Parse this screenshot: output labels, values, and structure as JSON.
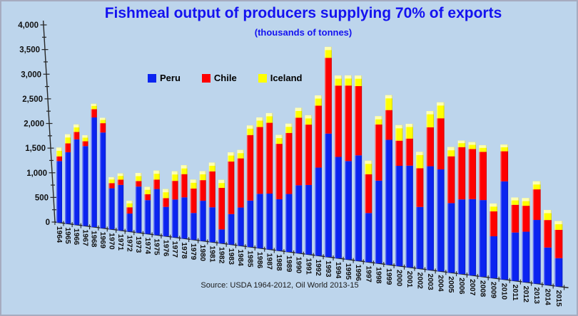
{
  "title": "Fishmeal output of producers supplying 70% of exports",
  "subtitle": "(thousands of tonnes)",
  "source_note": "Source: USDA 1964-2012, Oil World 2013-15",
  "colors": {
    "background": "#bdd5ec",
    "frame_border": "#a6abbf",
    "title_text": "#1412f0",
    "axis": "#262626",
    "peru": "#0b24f0",
    "chile": "#fe0000",
    "iceland": "#ffff00",
    "iceland_top_face": "#ffffb0",
    "tick_label": "#111111"
  },
  "chart_data": {
    "type": "bar",
    "stacked": true,
    "perspective": "3d-skewed-baseline",
    "title": "Fishmeal output of producers supplying 70% of exports",
    "subtitle": "(thousands of tonnes)",
    "ylabel": "",
    "xlabel": "",
    "ylim": [
      0,
      4000
    ],
    "ytick_major_step": 500,
    "ytick_minor_step": 250,
    "yticklabels": [
      "0",
      "500",
      "1,000",
      "1,500",
      "2,000",
      "2,500",
      "3,000",
      "3,500",
      "4,000"
    ],
    "legend_position": "inside-top-left",
    "grid": false,
    "categories": [
      1964,
      1965,
      1966,
      1967,
      1968,
      1969,
      1970,
      1971,
      1972,
      1973,
      1974,
      1975,
      1976,
      1977,
      1978,
      1979,
      1980,
      1981,
      1982,
      1983,
      1984,
      1985,
      1986,
      1987,
      1988,
      1989,
      1990,
      1991,
      1992,
      1993,
      1994,
      1995,
      1996,
      1997,
      1998,
      1999,
      2000,
      2001,
      2002,
      2003,
      2004,
      2005,
      2006,
      2007,
      2008,
      2009,
      2010,
      2011,
      2012,
      2013,
      2014,
      2015
    ],
    "series": [
      {
        "name": "Peru",
        "color": "#0b24f0",
        "values": [
          1300,
          1500,
          1780,
          1650,
          2250,
          1950,
          830,
          915,
          360,
          915,
          665,
          900,
          570,
          730,
          790,
          510,
          760,
          655,
          260,
          565,
          705,
          850,
          990,
          1010,
          925,
          1035,
          1205,
          1225,
          1545,
          2150,
          1755,
          1695,
          1805,
          835,
          1400,
          2100,
          1675,
          1690,
          1020,
          1705,
          1665,
          1130,
          1205,
          1225,
          1225,
          665,
          1550,
          760,
          790,
          990,
          580,
          435
        ]
      },
      {
        "name": "Chile",
        "color": "#fe0000",
        "values": [
          100,
          185,
          155,
          100,
          170,
          190,
          105,
          105,
          125,
          110,
          115,
          185,
          170,
          360,
          445,
          465,
          390,
          675,
          775,
          975,
          905,
          1200,
          1215,
          1280,
          995,
          1090,
          1200,
          1065,
          1085,
          1320,
          1235,
          1300,
          1185,
          660,
          950,
          500,
          420,
          450,
          640,
          640,
          835,
          760,
          845,
          805,
          770,
          395,
          475,
          435,
          405,
          475,
          425,
          435
        ]
      },
      {
        "name": "Iceland",
        "color": "#ffff00",
        "values": [
          185,
          190,
          155,
          125,
          110,
          110,
          120,
          125,
          130,
          160,
          145,
          175,
          175,
          185,
          170,
          170,
          170,
          165,
          150,
          170,
          155,
          175,
          175,
          175,
          160,
          165,
          175,
          165,
          180,
          190,
          175,
          175,
          180,
          230,
          140,
          250,
          260,
          245,
          270,
          265,
          260,
          150,
          105,
          110,
          105,
          125,
          105,
          115,
          120,
          125,
          155,
          135
        ]
      }
    ]
  }
}
